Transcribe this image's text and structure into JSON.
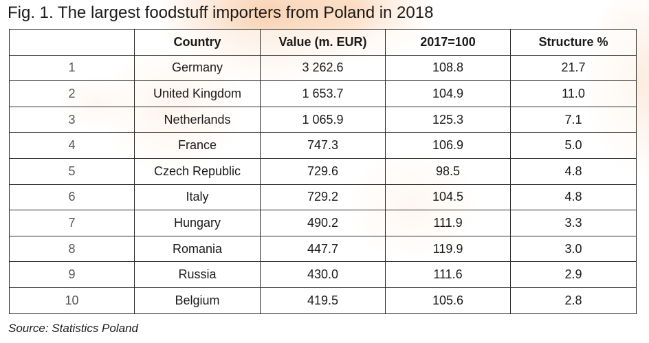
{
  "chart_data": {
    "type": "table",
    "title": "Fig. 1. The largest foodstuff importers from Poland in 2018",
    "columns": [
      "",
      "Country",
      "Value (m. EUR)",
      "2017=100",
      "Structure %"
    ],
    "rows": [
      {
        "rank": "1",
        "country": "Germany",
        "value": "3 262.6",
        "index": "108.8",
        "structure": "21.7"
      },
      {
        "rank": "2",
        "country": "United Kingdom",
        "value": "1 653.7",
        "index": "104.9",
        "structure": "11.0"
      },
      {
        "rank": "3",
        "country": "Netherlands",
        "value": "1 065.9",
        "index": "125.3",
        "structure": "7.1"
      },
      {
        "rank": "4",
        "country": "France",
        "value": "747.3",
        "index": "106.9",
        "structure": "5.0"
      },
      {
        "rank": "5",
        "country": "Czech Republic",
        "value": "729.6",
        "index": "98.5",
        "structure": "4.8"
      },
      {
        "rank": "6",
        "country": "Italy",
        "value": "729.2",
        "index": "104.5",
        "structure": "4.8"
      },
      {
        "rank": "7",
        "country": "Hungary",
        "value": "490.2",
        "index": "111.9",
        "structure": "3.3"
      },
      {
        "rank": "8",
        "country": "Romania",
        "value": "447.7",
        "index": "119.9",
        "structure": "3.0"
      },
      {
        "rank": "9",
        "country": "Russia",
        "value": "430.0",
        "index": "111.6",
        "structure": "2.9"
      },
      {
        "rank": "10",
        "country": "Belgium",
        "value": "419.5",
        "index": "105.6",
        "structure": "2.8"
      }
    ],
    "source": "Source: Statistics Poland"
  }
}
